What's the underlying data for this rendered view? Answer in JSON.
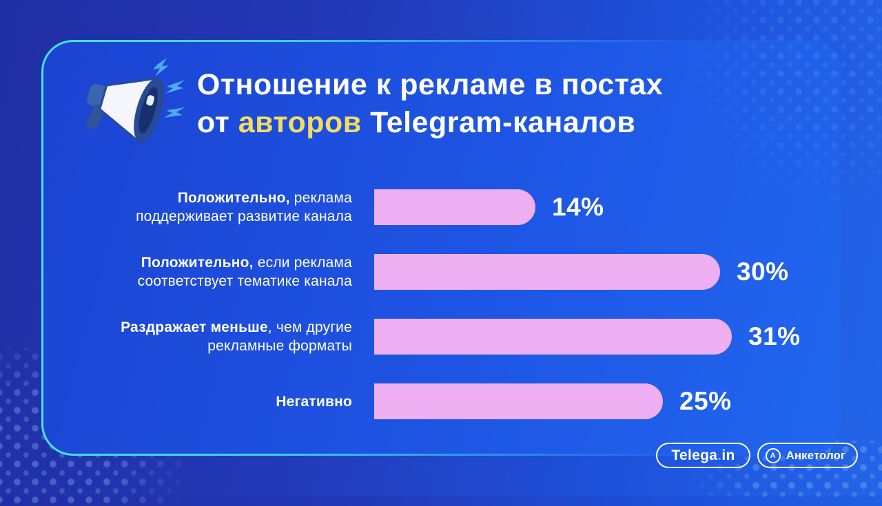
{
  "header": {
    "title_line1": "Отношение к рекламе в постах",
    "title_line2_pre": "от ",
    "title_line2_highlight": "авторов",
    "title_line2_post": " Telegram-каналов",
    "highlight_color": "#f2dc62",
    "megaphone_icon": "megaphone-with-lightning-bolts"
  },
  "chart_data": {
    "type": "bar",
    "orientation": "horizontal",
    "title": "Отношение к рекламе в постах от авторов Telegram-каналов",
    "unit": "%",
    "bar_color": "#eeb0f2",
    "value_label_color": "#ffffff",
    "grid": false,
    "legend": false,
    "xlim": [
      0,
      31
    ],
    "categories": [
      "Положительно, реклама поддерживает развитие канала",
      "Положительно, если реклама соответствует тематике канала",
      "Раздражает меньше, чем другие рекламные форматы",
      "Негативно"
    ],
    "values": [
      14,
      30,
      31,
      25
    ],
    "value_labels": [
      "14%",
      "30%",
      "31%",
      "25%"
    ],
    "rows": [
      {
        "line1_bold": "Положительно,",
        "line1_rest": " реклама",
        "line2": "поддерживает развитие канала",
        "value": 14,
        "value_label": "14%"
      },
      {
        "line1_bold": "Положительно,",
        "line1_rest": " если реклама",
        "line2": "соответствует тематике канала",
        "value": 30,
        "value_label": "30%"
      },
      {
        "line1_bold": "Раздражает меньше",
        "line1_rest": ", чем другие",
        "line2": "рекламные форматы",
        "value": 31,
        "value_label": "31%"
      },
      {
        "line1_bold": "Негативно",
        "line1_rest": "",
        "line2": "",
        "value": 25,
        "value_label": "25%"
      }
    ]
  },
  "footer": {
    "telega_badge": {
      "text_main": "Telega",
      "text_dot": ".",
      "text_suffix": "in",
      "dot_color": "#2fd0e0"
    },
    "anketolog_badge": {
      "label": "Анкетолог",
      "logo_letter": "А"
    }
  },
  "colors": {
    "accent_cyan_border": "#45e2f5",
    "card_blue": "#1e55e4",
    "background_blue": "#2338b6",
    "bar_pink": "#eeb0f2",
    "title_highlight_yellow": "#f2dc62"
  }
}
